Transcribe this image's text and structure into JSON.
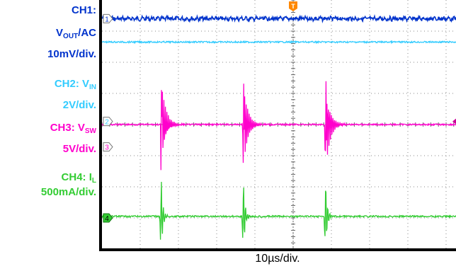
{
  "legend": {
    "ch1": {
      "title": "CH1:",
      "signal_main": "V",
      "signal_sub": "OUT",
      "signal_rest": "/AC",
      "scale": "10mV/div.",
      "color": "#0033cc"
    },
    "ch2": {
      "prefix": "CH2: V",
      "sub": "IN",
      "scale": "2V/div.",
      "color": "#33ccff"
    },
    "ch3": {
      "prefix": "CH3: V",
      "sub": "SW",
      "scale": "5V/div.",
      "color": "#ff00cc"
    },
    "ch4": {
      "prefix": "CH4: I",
      "sub": "L",
      "scale": "500mA/div.",
      "color": "#33cc33"
    }
  },
  "trigger_marker": "T",
  "channel_markers": [
    "1",
    "2",
    "3",
    "4"
  ],
  "xlabel": "10µs/div.",
  "chart_data": {
    "type": "line",
    "title": "",
    "xlabel": "10µs/div.",
    "ylabel": "",
    "grid": true,
    "x_divisions": 10,
    "y_divisions": 8,
    "x_range_div": [
      0,
      10
    ],
    "y_range_div": [
      -4,
      4
    ],
    "switching_event_times_div": [
      1.55,
      3.7,
      5.85
    ],
    "series": [
      {
        "name": "CH1",
        "color": "#0033cc",
        "baseline_div": 3.4,
        "description_level": "flat ripple"
      },
      {
        "name": "CH2",
        "color": "#33ccff",
        "baseline_div": 2.65,
        "description_level": "flat"
      },
      {
        "name": "CH3",
        "color": "#ff00cc",
        "baseline_div": 0.0,
        "spike_div": 1.5
      },
      {
        "name": "CH4",
        "color": "#33cc33",
        "baseline_div": -2.95,
        "spike_div": 1.3
      }
    ]
  }
}
